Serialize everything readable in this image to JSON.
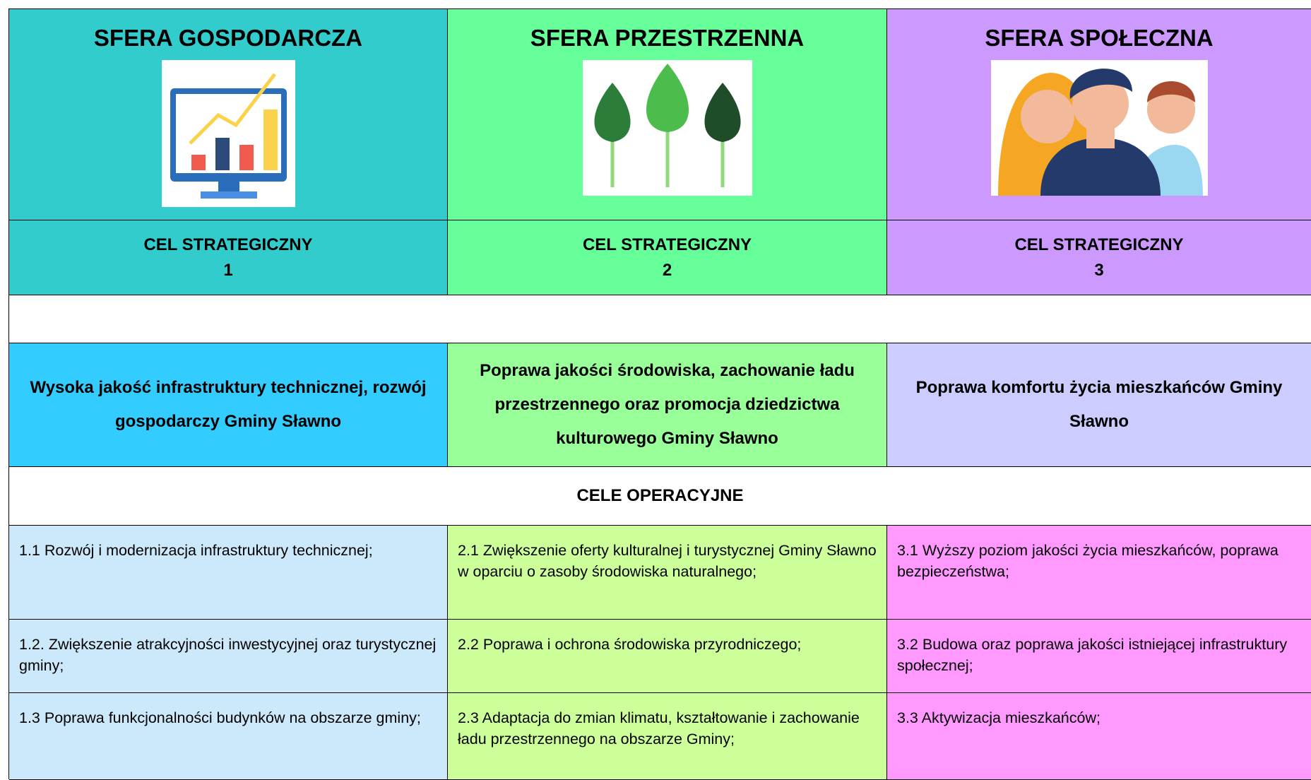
{
  "columns": [
    {
      "sphere": "SFERA GOSPODARCZA",
      "goal_label": "CEL STRATEGICZNY",
      "goal_number": "1",
      "goal": "Wysoka jakość infrastruktury technicznej, rozwój gospodarczy Gminy Sławno",
      "objectives": [
        "1.1 Rozwój i modernizacja infrastruktury technicznej;",
        "1.2. Zwiększenie atrakcyjności inwestycyjnej oraz turystycznej gminy;",
        "1.3 Poprawa funkcjonalności budynków na obszarze gminy;"
      ]
    },
    {
      "sphere": "SFERA PRZESTRZENNA",
      "goal_label": "CEL STRATEGICZNY",
      "goal_number": "2",
      "goal": "Poprawa jakości środowiska, zachowanie ładu przestrzennego oraz promocja dziedzictwa kulturowego Gminy Sławno",
      "objectives": [
        "2.1 Zwiększenie oferty kulturalnej i turystycznej Gminy Sławno w oparciu o zasoby środowiska naturalnego;",
        "2.2 Poprawa i ochrona środowiska przyrodniczego;",
        "2.3 Adaptacja do zmian klimatu, kształtowanie i zachowanie ładu przestrzennego na obszarze Gminy;"
      ]
    },
    {
      "sphere": "SFERA SPOŁECZNA",
      "goal_label": "CEL STRATEGICZNY",
      "goal_number": "3",
      "goal": "Poprawa komfortu życia mieszkańców Gminy Sławno",
      "objectives": [
        "3.1 Wyższy poziom jakości życia mieszkańców, poprawa bezpieczeństwa;",
        "3.2 Budowa oraz poprawa jakości istniejącej infrastruktury społecznej;",
        "3.3 Aktywizacja mieszkańców;"
      ]
    }
  ],
  "operational_heading": "CELE OPERACYJNE"
}
